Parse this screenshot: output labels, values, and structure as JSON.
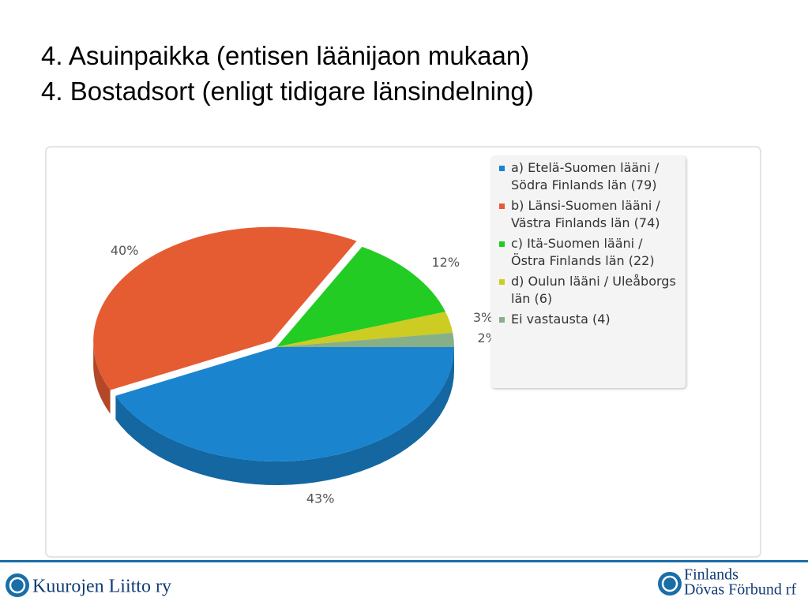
{
  "chart_data": {
    "type": "pie",
    "title": "4. Asuinpaikka (entisen läänijaon mukaan)",
    "subtitle": "4. Bostadsort (enligt tidigare länsindelning)",
    "series": [
      {
        "name": "a) Etelä-Suomen lääni / Södra Finlands län (79)",
        "color": "#1a84cf"
      },
      {
        "name": "b) Länsi-Suomen lääni / Västra Finlands län (74)",
        "color": "#e55c33"
      },
      {
        "name": "c) Itä-Suomen lääni / Östra Finlands län (22)",
        "color": "#22cc22"
      },
      {
        "name": "d) Oulun lääni / Uleåborgs län (6)",
        "color": "#cccc22"
      },
      {
        "name": "Ei vastausta (4)",
        "color": "#88b088"
      }
    ],
    "values": [
      43,
      40,
      12,
      3,
      2
    ],
    "value_labels": [
      "43%",
      "40%",
      "12%",
      "3%",
      "2%"
    ]
  },
  "footer": {
    "left": "Kuurojen Liitto ry",
    "right": [
      "Finlands",
      "Dövas Förbund rf"
    ]
  }
}
